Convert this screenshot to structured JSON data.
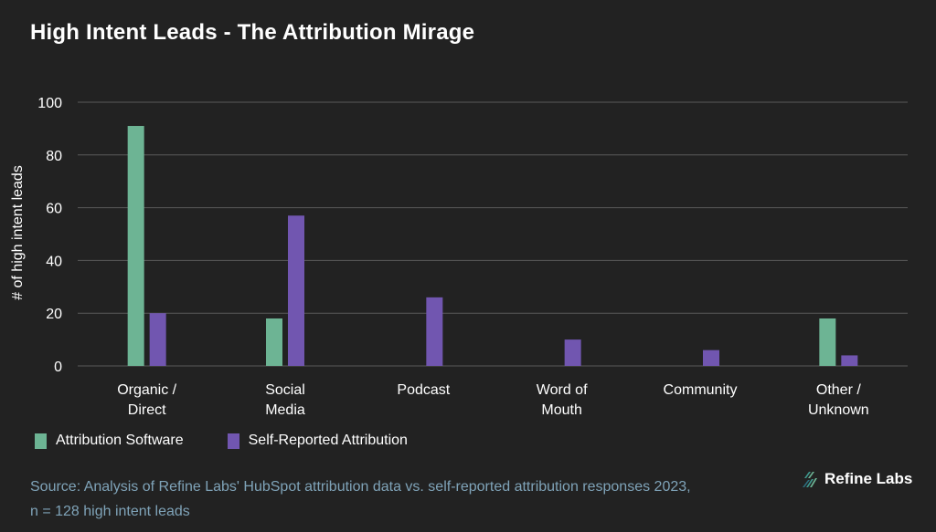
{
  "header": {
    "title": "High Intent Leads - The Attribution Mirage"
  },
  "colors": {
    "attribution_software": "#6db494",
    "self_reported": "#7156b0",
    "grid": "#5a5a5a",
    "source": "#7fa3b8"
  },
  "chart_data": {
    "type": "bar",
    "title": "High Intent Leads - The Attribution Mirage",
    "xlabel": "",
    "ylabel": "# of high intent leads",
    "ylim": [
      0,
      100
    ],
    "yticks": [
      0,
      20,
      40,
      60,
      80,
      100
    ],
    "grid": true,
    "legend_position": "bottom-left",
    "categories": [
      [
        "Organic /",
        "Direct"
      ],
      [
        "Social",
        "Media"
      ],
      [
        "Podcast"
      ],
      [
        "Word of",
        "Mouth"
      ],
      [
        "Community"
      ],
      [
        "Other /",
        "Unknown"
      ]
    ],
    "series": [
      {
        "name": "Attribution Software",
        "values": [
          91,
          18,
          0,
          0,
          0,
          18
        ]
      },
      {
        "name": "Self-Reported Attribution",
        "values": [
          20,
          57,
          26,
          10,
          6,
          4
        ]
      }
    ]
  },
  "legend": {
    "items": [
      "Attribution Software",
      "Self-Reported Attribution"
    ]
  },
  "footer": {
    "source_line1": "Source: Analysis of Refine Labs' HubSpot attribution data vs. self-reported attribution responses 2023,",
    "source_line2": "n = 128 high intent leads",
    "brand": "Refine Labs"
  }
}
